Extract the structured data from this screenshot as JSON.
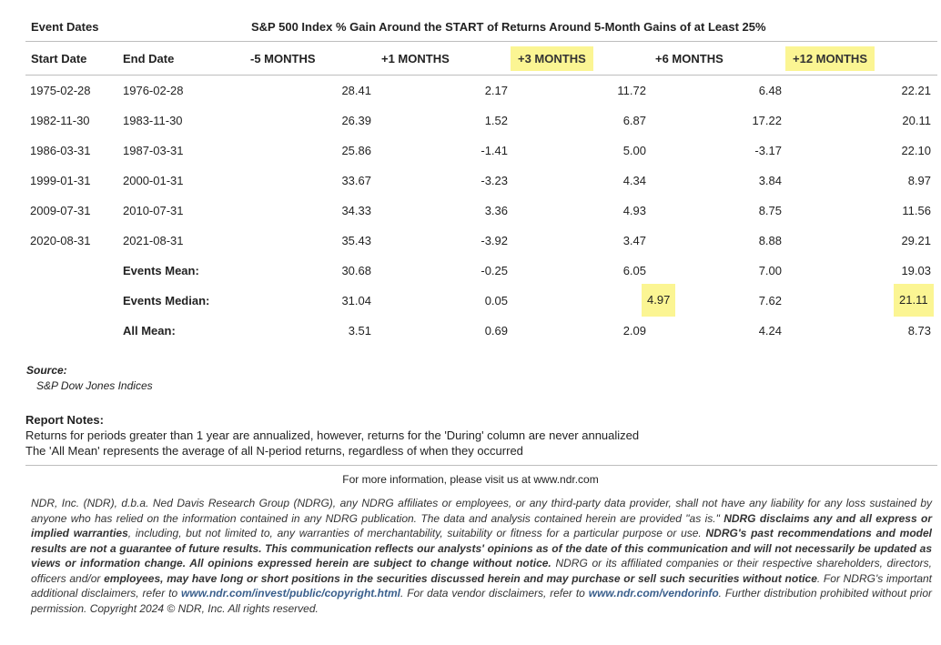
{
  "header": {
    "event_dates_label": "Event Dates",
    "title": "S&P 500 Index % Gain Around the START of Returns Around 5-Month Gains of at Least 25%"
  },
  "columns": {
    "start": "Start Date",
    "end": "End Date",
    "m5": "-5 MONTHS",
    "p1": "+1 MONTHS",
    "p3": "+3 MONTHS",
    "p6": "+6 MONTHS",
    "p12": "+12 MONTHS"
  },
  "highlight_color": "#fbf593",
  "rows": [
    {
      "start": "1975-02-28",
      "end": "1976-02-28",
      "m5": "28.41",
      "p1": "2.17",
      "p3": "11.72",
      "p6": "6.48",
      "p12": "22.21"
    },
    {
      "start": "1982-11-30",
      "end": "1983-11-30",
      "m5": "26.39",
      "p1": "1.52",
      "p3": "6.87",
      "p6": "17.22",
      "p12": "20.11"
    },
    {
      "start": "1986-03-31",
      "end": "1987-03-31",
      "m5": "25.86",
      "p1": "-1.41",
      "p3": "5.00",
      "p6": "-3.17",
      "p12": "22.10"
    },
    {
      "start": "1999-01-31",
      "end": "2000-01-31",
      "m5": "33.67",
      "p1": "-3.23",
      "p3": "4.34",
      "p6": "3.84",
      "p12": "8.97"
    },
    {
      "start": "2009-07-31",
      "end": "2010-07-31",
      "m5": "34.33",
      "p1": "3.36",
      "p3": "4.93",
      "p6": "8.75",
      "p12": "11.56"
    },
    {
      "start": "2020-08-31",
      "end": "2021-08-31",
      "m5": "35.43",
      "p1": "-3.92",
      "p3": "3.47",
      "p6": "8.88",
      "p12": "29.21"
    }
  ],
  "summary": [
    {
      "label": "Events Mean:",
      "m5": "30.68",
      "p1": "-0.25",
      "p3": "6.05",
      "p6": "7.00",
      "p12": "19.03"
    },
    {
      "label": "Events Median:",
      "m5": "31.04",
      "p1": "0.05",
      "p3": "4.97",
      "p6": "7.62",
      "p12": "21.11"
    },
    {
      "label": "All Mean:",
      "m5": "3.51",
      "p1": "0.69",
      "p3": "2.09",
      "p6": "4.24",
      "p12": "8.73"
    }
  ],
  "source": {
    "label": "Source:",
    "value": "S&P Dow Jones Indices"
  },
  "notes": {
    "label": "Report Notes:",
    "lines": [
      "Returns for periods greater than 1 year are annualized, however, returns for the 'During' column are never annualized",
      "The 'All Mean' represents the average of all N-period returns, regardless of when they occurred"
    ]
  },
  "footer": {
    "more_info": "For more information, please visit us at www.ndr.com",
    "d1": "NDR, Inc. (NDR), d.b.a. Ned Davis Research Group (NDRG), any NDRG affiliates or employees, or any third-party data provider, shall not have any liability for any loss sustained by anyone who has relied on the information contained in any NDRG publication. The data and analysis contained herein are provided \"as is.\" ",
    "d2": "NDRG disclaims any and all express or implied warranties",
    "d3": ", including, but not limited to, any warranties of merchantability, suitability or fitness for a particular purpose or use. ",
    "d4": "NDRG's past recommendations and model results are not a guarantee of future results. This communication reflects our analysts' opinions as of the date of this communication and will not necessarily be updated as views or information change. All opinions expressed herein are subject to change without notice.",
    "d5": " NDRG or its affiliated companies or their respective shareholders, directors, officers and/or ",
    "d6": "employees, may have long or short positions in the securities discussed herein and may purchase or sell such securities without notice",
    "d7": ". For NDRG's important additional disclaimers, refer to ",
    "link1": "www.ndr.com/invest/public/copyright.html",
    "d8": ". For data vendor disclaimers, refer to ",
    "link2": "www.ndr.com/vendorinfo",
    "d9": ". Further distribution prohibited without prior permission. Copyright 2024 © NDR, Inc. All rights reserved."
  }
}
